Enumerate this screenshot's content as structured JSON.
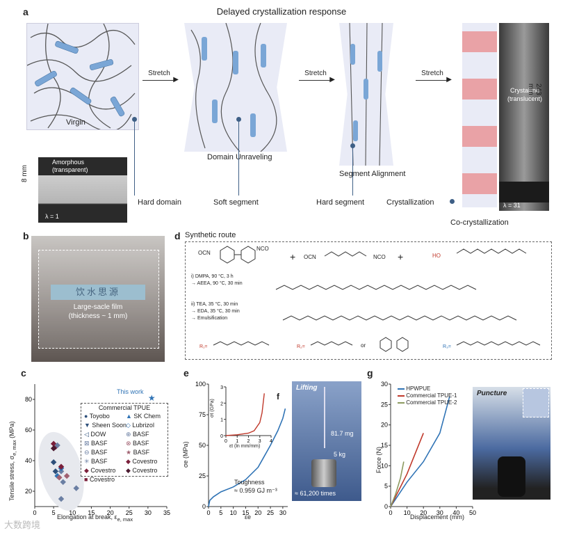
{
  "panel_a": {
    "letter": "a",
    "title": "Delayed crystallization response",
    "stages": [
      "Virgin",
      "Domain Unraveling",
      "Segment Alignment",
      "Co-crystallization"
    ],
    "arrows": [
      "Stretch",
      "Stretch",
      "Stretch"
    ],
    "callouts": [
      "Hard domain",
      "Soft segment",
      "Hard segment",
      "Crystallization"
    ],
    "inset_left": {
      "label1": "Amorphous",
      "label2": "(transparent)",
      "size": "8 mm",
      "lambda": "λ = 1"
    },
    "inset_right": {
      "label1": "Crystalline",
      "label2": "(translucent)",
      "size": "243 mm",
      "lambda": "λ = 31"
    }
  },
  "panel_b": {
    "letter": "b",
    "film_line1": "Large-sacle film",
    "film_line2": "(thickness ~ 1 mm)",
    "sign": "饮水思源"
  },
  "panel_c": {
    "letter": "c",
    "ylabel": "Tensile stress, σ",
    "ylabel_sub": "e, max",
    "ylabel_unit": " (MPa)",
    "xlabel": "Elongation at break, ε",
    "xlabel_sub": "e, max",
    "this_work": "This work",
    "legend_title": "Commercial TPUE",
    "legend_left": [
      "Toyobo",
      "Sheen Soon",
      "DOW",
      "BASF",
      "BASF",
      "BASF",
      "Covestro",
      "Covestro"
    ],
    "legend_right": [
      "SK Chem",
      "Lubrizol",
      "BASF",
      "BASF",
      "BASF",
      "Covestro",
      "Covestro"
    ]
  },
  "panel_d": {
    "letter": "d",
    "title": "Synthetic route",
    "step1a": "i)  DMPA, 90 °C, 3 h",
    "step1b": "→ AEEA, 90 °C, 30 min",
    "step2a": "ii)  TEA, 35 °C, 30 min",
    "step2b": "→ EDA, 35 °C, 30 min",
    "step2c": "→ Emulsification",
    "or": "or"
  },
  "panel_e": {
    "letter": "e",
    "ylabel": "σe (MPa)",
    "xlabel": "εe",
    "toughness_label": "Toughness",
    "toughness_value": "≈ 0.959 GJ m⁻³",
    "lifting": "Lifting",
    "mass_small": "81.7 mg",
    "mass_big": "5 kg",
    "times": "≈ 61,200 times"
  },
  "panel_f": {
    "letter": "f",
    "ylabel": "σt (GPa)",
    "xlabel": "εt (ln mm/mm)"
  },
  "panel_g": {
    "letter": "g",
    "ylabel": "Force (N)",
    "xlabel": "Displacement (mm)",
    "puncture": "Puncture",
    "legend": [
      "HPWPUE",
      "Commercial TPUE-1",
      "Commercial TPUE-2"
    ]
  },
  "watermark": "大数跨境",
  "colors": {
    "blue": "#2f73b5",
    "red": "#c0392b",
    "olive": "#8c9a60",
    "navy": "#2d4f7a",
    "maroon": "#7a1f3a"
  },
  "chart_data": [
    {
      "type": "scatter",
      "xlabel": "Elongation at break, εe, max",
      "ylabel": "Tensile stress, σe, max (MPa)",
      "xlim": [
        0,
        35
      ],
      "ylim": [
        10,
        90
      ],
      "xticks": [
        0,
        5,
        10,
        15,
        20,
        25,
        30,
        35
      ],
      "yticks": [
        20,
        40,
        60,
        80
      ],
      "series": [
        {
          "name": "This work",
          "points": [
            [
              31,
              81
            ]
          ]
        },
        {
          "name": "Commercial TPUE",
          "points": [
            [
              5,
              39
            ],
            [
              5.5,
              33
            ],
            [
              6,
              30
            ],
            [
              7,
              33
            ],
            [
              7.5,
              26
            ],
            [
              8.5,
              30
            ],
            [
              5,
              51
            ],
            [
              5.5,
              49
            ],
            [
              6,
              50
            ],
            [
              7,
              35
            ],
            [
              7,
              15
            ],
            [
              11,
              22
            ],
            [
              6.5,
              29
            ],
            [
              7,
              36
            ],
            [
              5,
              48
            ]
          ]
        }
      ]
    },
    {
      "type": "line",
      "xlabel": "εe",
      "ylabel": "σe (MPa)",
      "xlim": [
        0,
        32
      ],
      "ylim": [
        0,
        100
      ],
      "xticks": [
        0,
        5,
        10,
        15,
        20,
        25,
        30
      ],
      "yticks": [
        0,
        25,
        50,
        75,
        100
      ],
      "series": [
        {
          "name": "",
          "x": [
            0,
            0.5,
            2,
            5,
            10,
            15,
            20,
            25,
            28,
            30,
            31
          ],
          "y": [
            0,
            5,
            8,
            12,
            16,
            22,
            32,
            50,
            62,
            72,
            80
          ]
        }
      ]
    },
    {
      "type": "line",
      "xlabel": "εt (ln mm/mm)",
      "ylabel": "σt (GPa)",
      "xlim": [
        0,
        4
      ],
      "ylim": [
        0,
        3
      ],
      "xticks": [
        0,
        1,
        2,
        3,
        4
      ],
      "yticks": [
        0,
        1,
        2,
        3
      ],
      "series": [
        {
          "name": "",
          "x": [
            0,
            1,
            2,
            2.5,
            3,
            3.2,
            3.4
          ],
          "y": [
            0,
            0.05,
            0.15,
            0.3,
            0.8,
            1.4,
            2.6
          ]
        }
      ]
    },
    {
      "type": "line",
      "xlabel": "Displacement (mm)",
      "ylabel": "Force (N)",
      "xlim": [
        0,
        50
      ],
      "ylim": [
        0,
        30
      ],
      "xticks": [
        0,
        10,
        20,
        30,
        40,
        50
      ],
      "yticks": [
        0,
        5,
        10,
        15,
        20,
        25,
        30
      ],
      "series": [
        {
          "name": "HPWPUE",
          "x": [
            0,
            5,
            10,
            20,
            30,
            36
          ],
          "y": [
            0,
            3,
            6,
            11,
            18,
            27
          ]
        },
        {
          "name": "Commercial TPUE-1",
          "x": [
            0,
            5,
            10,
            15,
            20
          ],
          "y": [
            0,
            4,
            8,
            13,
            18
          ]
        },
        {
          "name": "Commercial TPUE-2",
          "x": [
            0,
            3,
            6,
            8
          ],
          "y": [
            0,
            3,
            7,
            11
          ]
        }
      ]
    }
  ]
}
